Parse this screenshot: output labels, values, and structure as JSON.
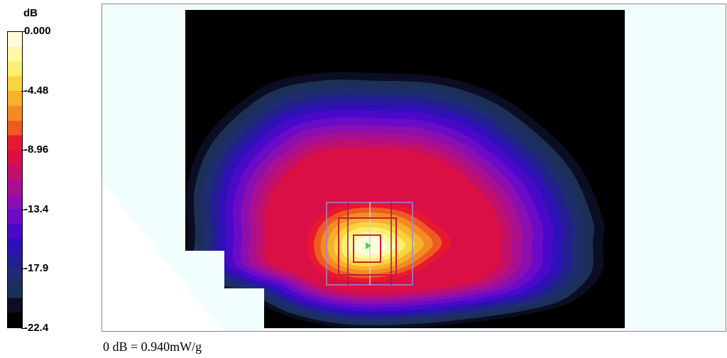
{
  "chart_data": {
    "type": "heatmap",
    "colorbar": {
      "unit": "dB",
      "ticks": [
        "0.000",
        "-4.48",
        "-8.96",
        "-13.4",
        "-17.9",
        "-22.4"
      ],
      "range": [
        -22.4,
        0.0
      ],
      "levels": 20,
      "colors": [
        "#fdfdd9",
        "#fcf9a7",
        "#fbee70",
        "#f9d43f",
        "#f7b12b",
        "#f38b24",
        "#ef5a22",
        "#e8182f",
        "#d90f45",
        "#c0106c",
        "#a81091",
        "#8b0fae",
        "#6a0bc8",
        "#4a09c8",
        "#2f10b6",
        "#22208f",
        "#1d2d6e",
        "#1c3057",
        "#0b0d22",
        "#000000"
      ]
    },
    "reference": "0 dB = 0.940mW/g"
  }
}
